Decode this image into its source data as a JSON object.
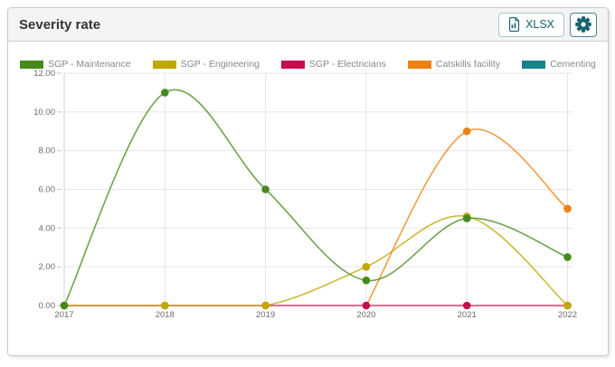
{
  "header": {
    "title": "Severity rate",
    "xlsx_button_label": "XLSX"
  },
  "icons": {
    "export_icon": "file-spreadsheet-icon",
    "settings_icon": "gear-icon"
  },
  "colors": {
    "accent_teal": "#19626d",
    "header_bg": "#f4f4f4",
    "card_border": "#c9c9c9",
    "gridline": "#e5e5e5"
  },
  "chart_data": {
    "type": "line",
    "title": "Severity rate",
    "xlabel": "",
    "ylabel": "",
    "x": [
      "2017",
      "2018",
      "2019",
      "2020",
      "2021",
      "2022"
    ],
    "ylim": [
      0,
      12
    ],
    "yticks": [
      "0.00",
      "2.00",
      "4.00",
      "6.00",
      "8.00",
      "10.00",
      "12.00"
    ],
    "grid": true,
    "legend_position": "top",
    "series": [
      {
        "name": "SGP - Maintenance",
        "color": "#468a1c",
        "values": [
          0,
          11,
          6,
          1.3,
          4.5,
          2.5
        ]
      },
      {
        "name": "SGP - Engineering",
        "color": "#bfa800",
        "values": [
          0,
          0,
          0,
          2,
          4.6,
          0
        ]
      },
      {
        "name": "SGP - Electricians",
        "color": "#c40e4e",
        "values": [
          0,
          0,
          0,
          0,
          0,
          0
        ]
      },
      {
        "name": "Catskills facility",
        "color": "#ec820f",
        "values": [
          null,
          null,
          null,
          0,
          9,
          5
        ]
      },
      {
        "name": "Cementing",
        "color": "#15828e",
        "values": [
          null,
          null,
          null,
          null,
          null,
          null
        ]
      }
    ]
  }
}
